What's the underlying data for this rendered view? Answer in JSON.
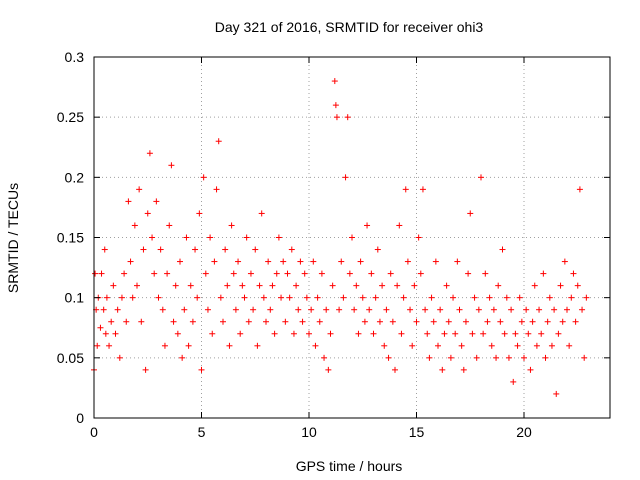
{
  "chart_data": {
    "type": "scatter",
    "title": "Day 321 of 2016, SRMTID for receiver ohi3",
    "xlabel": "GPS time / hours",
    "ylabel": "SRMTID / TECUs",
    "xlim": [
      0,
      24
    ],
    "ylim": [
      0,
      0.3
    ],
    "xticks": [
      0,
      5,
      10,
      15,
      20
    ],
    "xtick_labels": [
      "0",
      "5",
      "10",
      "15",
      "20"
    ],
    "yticks": [
      0,
      0.05,
      0.1,
      0.15,
      0.2,
      0.25,
      0.3
    ],
    "ytick_labels": [
      "0",
      "0.05",
      "0.1",
      "0.15",
      "0.2",
      "0.25",
      "0.3"
    ],
    "grid": true,
    "marker": "+",
    "marker_color": "#ff0000",
    "series": [
      {
        "name": "SRMTID",
        "points": [
          [
            0.0,
            0.04
          ],
          [
            0.05,
            0.12
          ],
          [
            0.1,
            0.09
          ],
          [
            0.15,
            0.06
          ],
          [
            0.2,
            0.1
          ],
          [
            0.3,
            0.075
          ],
          [
            0.35,
            0.12
          ],
          [
            0.45,
            0.09
          ],
          [
            0.5,
            0.14
          ],
          [
            0.55,
            0.07
          ],
          [
            0.6,
            0.1
          ],
          [
            0.7,
            0.06
          ],
          [
            0.8,
            0.08
          ],
          [
            0.9,
            0.11
          ],
          [
            1.0,
            0.07
          ],
          [
            1.1,
            0.09
          ],
          [
            1.2,
            0.05
          ],
          [
            1.3,
            0.1
          ],
          [
            1.4,
            0.12
          ],
          [
            1.5,
            0.08
          ],
          [
            1.6,
            0.18
          ],
          [
            1.7,
            0.13
          ],
          [
            1.8,
            0.1
          ],
          [
            1.9,
            0.16
          ],
          [
            2.0,
            0.11
          ],
          [
            2.1,
            0.19
          ],
          [
            2.2,
            0.08
          ],
          [
            2.3,
            0.14
          ],
          [
            2.4,
            0.04
          ],
          [
            2.5,
            0.17
          ],
          [
            2.6,
            0.22
          ],
          [
            2.7,
            0.15
          ],
          [
            2.8,
            0.12
          ],
          [
            2.9,
            0.18
          ],
          [
            3.0,
            0.1
          ],
          [
            3.1,
            0.14
          ],
          [
            3.2,
            0.09
          ],
          [
            3.3,
            0.06
          ],
          [
            3.4,
            0.12
          ],
          [
            3.5,
            0.16
          ],
          [
            3.6,
            0.21
          ],
          [
            3.7,
            0.08
          ],
          [
            3.8,
            0.11
          ],
          [
            3.9,
            0.07
          ],
          [
            4.0,
            0.13
          ],
          [
            4.1,
            0.05
          ],
          [
            4.2,
            0.09
          ],
          [
            4.3,
            0.15
          ],
          [
            4.4,
            0.06
          ],
          [
            4.5,
            0.11
          ],
          [
            4.6,
            0.08
          ],
          [
            4.7,
            0.14
          ],
          [
            4.8,
            0.1
          ],
          [
            4.9,
            0.17
          ],
          [
            5.0,
            0.04
          ],
          [
            5.1,
            0.2
          ],
          [
            5.2,
            0.12
          ],
          [
            5.3,
            0.09
          ],
          [
            5.4,
            0.15
          ],
          [
            5.5,
            0.07
          ],
          [
            5.6,
            0.13
          ],
          [
            5.7,
            0.19
          ],
          [
            5.8,
            0.23
          ],
          [
            5.9,
            0.1
          ],
          [
            6.0,
            0.08
          ],
          [
            6.1,
            0.14
          ],
          [
            6.2,
            0.11
          ],
          [
            6.3,
            0.06
          ],
          [
            6.4,
            0.16
          ],
          [
            6.5,
            0.12
          ],
          [
            6.6,
            0.09
          ],
          [
            6.7,
            0.13
          ],
          [
            6.8,
            0.07
          ],
          [
            6.9,
            0.11
          ],
          [
            7.0,
            0.1
          ],
          [
            7.1,
            0.15
          ],
          [
            7.2,
            0.08
          ],
          [
            7.3,
            0.12
          ],
          [
            7.4,
            0.09
          ],
          [
            7.5,
            0.14
          ],
          [
            7.6,
            0.06
          ],
          [
            7.7,
            0.11
          ],
          [
            7.8,
            0.17
          ],
          [
            7.9,
            0.1
          ],
          [
            8.0,
            0.08
          ],
          [
            8.1,
            0.13
          ],
          [
            8.2,
            0.09
          ],
          [
            8.3,
            0.11
          ],
          [
            8.4,
            0.07
          ],
          [
            8.5,
            0.12
          ],
          [
            8.6,
            0.15
          ],
          [
            8.7,
            0.1
          ],
          [
            8.8,
            0.13
          ],
          [
            8.9,
            0.08
          ],
          [
            9.0,
            0.12
          ],
          [
            9.1,
            0.1
          ],
          [
            9.2,
            0.14
          ],
          [
            9.3,
            0.07
          ],
          [
            9.4,
            0.11
          ],
          [
            9.5,
            0.09
          ],
          [
            9.6,
            0.13
          ],
          [
            9.7,
            0.08
          ],
          [
            9.8,
            0.12
          ],
          [
            9.9,
            0.1
          ],
          [
            10.0,
            0.07
          ],
          [
            10.1,
            0.09
          ],
          [
            10.2,
            0.13
          ],
          [
            10.3,
            0.06
          ],
          [
            10.4,
            0.1
          ],
          [
            10.5,
            0.08
          ],
          [
            10.6,
            0.12
          ],
          [
            10.7,
            0.05
          ],
          [
            10.8,
            0.09
          ],
          [
            10.9,
            0.04
          ],
          [
            11.0,
            0.07
          ],
          [
            11.1,
            0.11
          ],
          [
            11.2,
            0.28
          ],
          [
            11.25,
            0.26
          ],
          [
            11.3,
            0.25
          ],
          [
            11.4,
            0.09
          ],
          [
            11.5,
            0.13
          ],
          [
            11.6,
            0.1
          ],
          [
            11.7,
            0.2
          ],
          [
            11.8,
            0.25
          ],
          [
            11.9,
            0.12
          ],
          [
            12.0,
            0.15
          ],
          [
            12.1,
            0.09
          ],
          [
            12.2,
            0.11
          ],
          [
            12.3,
            0.07
          ],
          [
            12.4,
            0.13
          ],
          [
            12.5,
            0.1
          ],
          [
            12.6,
            0.08
          ],
          [
            12.7,
            0.16
          ],
          [
            12.8,
            0.09
          ],
          [
            12.9,
            0.12
          ],
          [
            13.0,
            0.07
          ],
          [
            13.1,
            0.1
          ],
          [
            13.2,
            0.14
          ],
          [
            13.3,
            0.08
          ],
          [
            13.4,
            0.11
          ],
          [
            13.5,
            0.06
          ],
          [
            13.6,
            0.09
          ],
          [
            13.7,
            0.05
          ],
          [
            13.8,
            0.12
          ],
          [
            13.9,
            0.08
          ],
          [
            14.0,
            0.04
          ],
          [
            14.1,
            0.11
          ],
          [
            14.2,
            0.16
          ],
          [
            14.3,
            0.07
          ],
          [
            14.4,
            0.1
          ],
          [
            14.5,
            0.19
          ],
          [
            14.6,
            0.13
          ],
          [
            14.7,
            0.09
          ],
          [
            14.8,
            0.06
          ],
          [
            14.9,
            0.11
          ],
          [
            15.0,
            0.08
          ],
          [
            15.1,
            0.15
          ],
          [
            15.2,
            0.12
          ],
          [
            15.3,
            0.19
          ],
          [
            15.4,
            0.09
          ],
          [
            15.5,
            0.07
          ],
          [
            15.6,
            0.05
          ],
          [
            15.7,
            0.1
          ],
          [
            15.8,
            0.08
          ],
          [
            15.9,
            0.13
          ],
          [
            16.0,
            0.06
          ],
          [
            16.1,
            0.09
          ],
          [
            16.2,
            0.04
          ],
          [
            16.3,
            0.07
          ],
          [
            16.4,
            0.11
          ],
          [
            16.5,
            0.08
          ],
          [
            16.6,
            0.05
          ],
          [
            16.7,
            0.1
          ],
          [
            16.8,
            0.07
          ],
          [
            16.9,
            0.13
          ],
          [
            17.0,
            0.09
          ],
          [
            17.1,
            0.06
          ],
          [
            17.2,
            0.04
          ],
          [
            17.3,
            0.08
          ],
          [
            17.4,
            0.12
          ],
          [
            17.5,
            0.17
          ],
          [
            17.6,
            0.07
          ],
          [
            17.7,
            0.1
          ],
          [
            17.8,
            0.05
          ],
          [
            17.9,
            0.09
          ],
          [
            18.0,
            0.2
          ],
          [
            18.1,
            0.07
          ],
          [
            18.2,
            0.12
          ],
          [
            18.3,
            0.08
          ],
          [
            18.4,
            0.1
          ],
          [
            18.5,
            0.06
          ],
          [
            18.6,
            0.09
          ],
          [
            18.7,
            0.05
          ],
          [
            18.8,
            0.11
          ],
          [
            18.9,
            0.08
          ],
          [
            19.0,
            0.14
          ],
          [
            19.1,
            0.07
          ],
          [
            19.2,
            0.1
          ],
          [
            19.3,
            0.05
          ],
          [
            19.4,
            0.09
          ],
          [
            19.5,
            0.03
          ],
          [
            19.6,
            0.07
          ],
          [
            19.7,
            0.06
          ],
          [
            19.8,
            0.1
          ],
          [
            19.9,
            0.08
          ],
          [
            20.0,
            0.05
          ],
          [
            20.1,
            0.09
          ],
          [
            20.2,
            0.07
          ],
          [
            20.3,
            0.04
          ],
          [
            20.4,
            0.08
          ],
          [
            20.5,
            0.11
          ],
          [
            20.6,
            0.06
          ],
          [
            20.7,
            0.09
          ],
          [
            20.8,
            0.07
          ],
          [
            20.9,
            0.12
          ],
          [
            21.0,
            0.05
          ],
          [
            21.1,
            0.08
          ],
          [
            21.2,
            0.1
          ],
          [
            21.3,
            0.06
          ],
          [
            21.4,
            0.09
          ],
          [
            21.5,
            0.02
          ],
          [
            21.6,
            0.07
          ],
          [
            21.7,
            0.11
          ],
          [
            21.8,
            0.08
          ],
          [
            21.9,
            0.13
          ],
          [
            22.0,
            0.09
          ],
          [
            22.1,
            0.06
          ],
          [
            22.2,
            0.1
          ],
          [
            22.3,
            0.12
          ],
          [
            22.4,
            0.08
          ],
          [
            22.5,
            0.11
          ],
          [
            22.6,
            0.19
          ],
          [
            22.7,
            0.09
          ],
          [
            22.8,
            0.05
          ],
          [
            22.9,
            0.1
          ]
        ]
      }
    ]
  }
}
